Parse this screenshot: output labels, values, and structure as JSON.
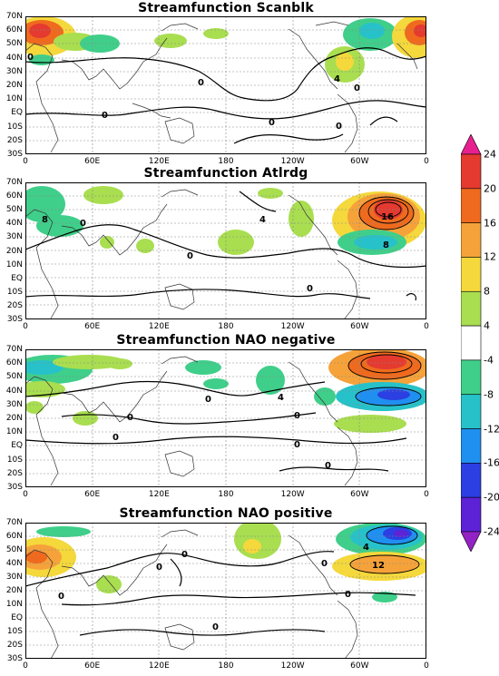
{
  "x_ticks": [
    "0",
    "60E",
    "120E",
    "180",
    "120W",
    "60W",
    "0"
  ],
  "y_ticks": [
    "70N",
    "60N",
    "50N",
    "40N",
    "30N",
    "20N",
    "10N",
    "EQ",
    "10S",
    "20S",
    "30S"
  ],
  "colorbar": {
    "levels": [
      "24",
      "20",
      "16",
      "12",
      "8",
      "4",
      "-4",
      "-8",
      "-12",
      "-16",
      "-20",
      "-24"
    ],
    "colors": [
      "#e8208f",
      "#e43a30",
      "#ef6a1e",
      "#f6a23a",
      "#f4d83c",
      "#a9de50",
      "#ffffff",
      "#3fcf8a",
      "#27c2c9",
      "#1f8ff0",
      "#2b3fe2",
      "#5d22d6",
      "#9322c4"
    ]
  },
  "panels": [
    {
      "title": "Streamfunction Scanblk",
      "contour_labels": [
        "0",
        "0",
        "0",
        "0",
        "0",
        "0",
        "4"
      ]
    },
    {
      "title": "Streamfunction Atlrdg",
      "contour_labels": [
        "8",
        "0",
        "4",
        "0",
        "0",
        "16",
        "8"
      ]
    },
    {
      "title": "Streamfunction NAO negative",
      "contour_labels": [
        "0",
        "0",
        "4",
        "0",
        "0",
        "0",
        "0"
      ]
    },
    {
      "title": "Streamfunction NAO positive",
      "contour_labels": [
        "0",
        "0",
        "0",
        "0",
        "0",
        "0",
        "12",
        "4"
      ]
    }
  ]
}
